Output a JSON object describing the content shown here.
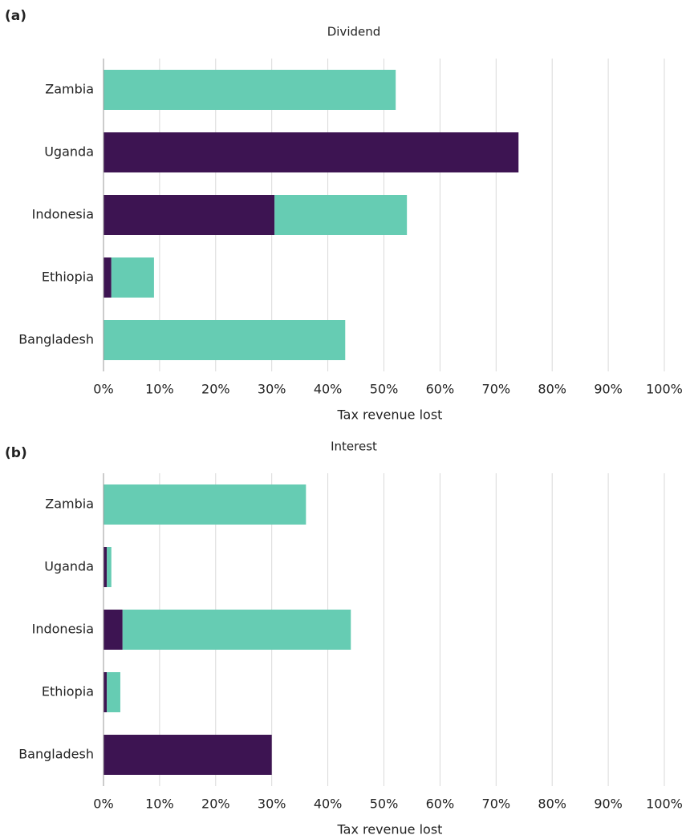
{
  "chart_data": [
    {
      "type": "bar",
      "orientation": "horizontal",
      "stacked": true,
      "panel_label": "(a)",
      "title": "Dividend",
      "xlabel": "Tax revenue lost",
      "categories": [
        "Zambia",
        "Uganda",
        "Indonesia",
        "Ethiopia",
        "Bangladesh"
      ],
      "series": [
        {
          "color": "#3d1452",
          "values": [
            0,
            74.0,
            30.5,
            1.4,
            0
          ]
        },
        {
          "color": "#66ccb3",
          "values": [
            52.1,
            0,
            23.6,
            7.6,
            43.1
          ]
        }
      ],
      "xlim": [
        0,
        100
      ],
      "xticks": [
        {
          "value": 0,
          "label": "0%"
        },
        {
          "value": 10,
          "label": "10%"
        },
        {
          "value": 20,
          "label": "20%"
        },
        {
          "value": 30,
          "label": "30%"
        },
        {
          "value": 40,
          "label": "40%"
        },
        {
          "value": 50,
          "label": "50%"
        },
        {
          "value": 60,
          "label": "60%"
        },
        {
          "value": 70,
          "label": "70%"
        },
        {
          "value": 80,
          "label": "80%"
        },
        {
          "value": 90,
          "label": "90%"
        },
        {
          "value": 100,
          "label": "100%"
        }
      ],
      "grid": true
    },
    {
      "type": "bar",
      "orientation": "horizontal",
      "stacked": true,
      "panel_label": "(b)",
      "title": "Interest",
      "xlabel": "Tax revenue lost",
      "categories": [
        "Zambia",
        "Uganda",
        "Indonesia",
        "Ethiopia",
        "Bangladesh"
      ],
      "series": [
        {
          "color": "#3d1452",
          "values": [
            0,
            0.6,
            3.4,
            0.6,
            30.0
          ]
        },
        {
          "color": "#66ccb3",
          "values": [
            36.1,
            0.8,
            40.7,
            2.4,
            0
          ]
        }
      ],
      "xlim": [
        0,
        100
      ],
      "xticks": [
        {
          "value": 0,
          "label": "0%"
        },
        {
          "value": 10,
          "label": "10%"
        },
        {
          "value": 20,
          "label": "20%"
        },
        {
          "value": 30,
          "label": "30%"
        },
        {
          "value": 40,
          "label": "40%"
        },
        {
          "value": 50,
          "label": "50%"
        },
        {
          "value": 60,
          "label": "60%"
        },
        {
          "value": 70,
          "label": "70%"
        },
        {
          "value": 80,
          "label": "80%"
        },
        {
          "value": 90,
          "label": "90%"
        },
        {
          "value": 100,
          "label": "100%"
        }
      ],
      "grid": true
    }
  ]
}
